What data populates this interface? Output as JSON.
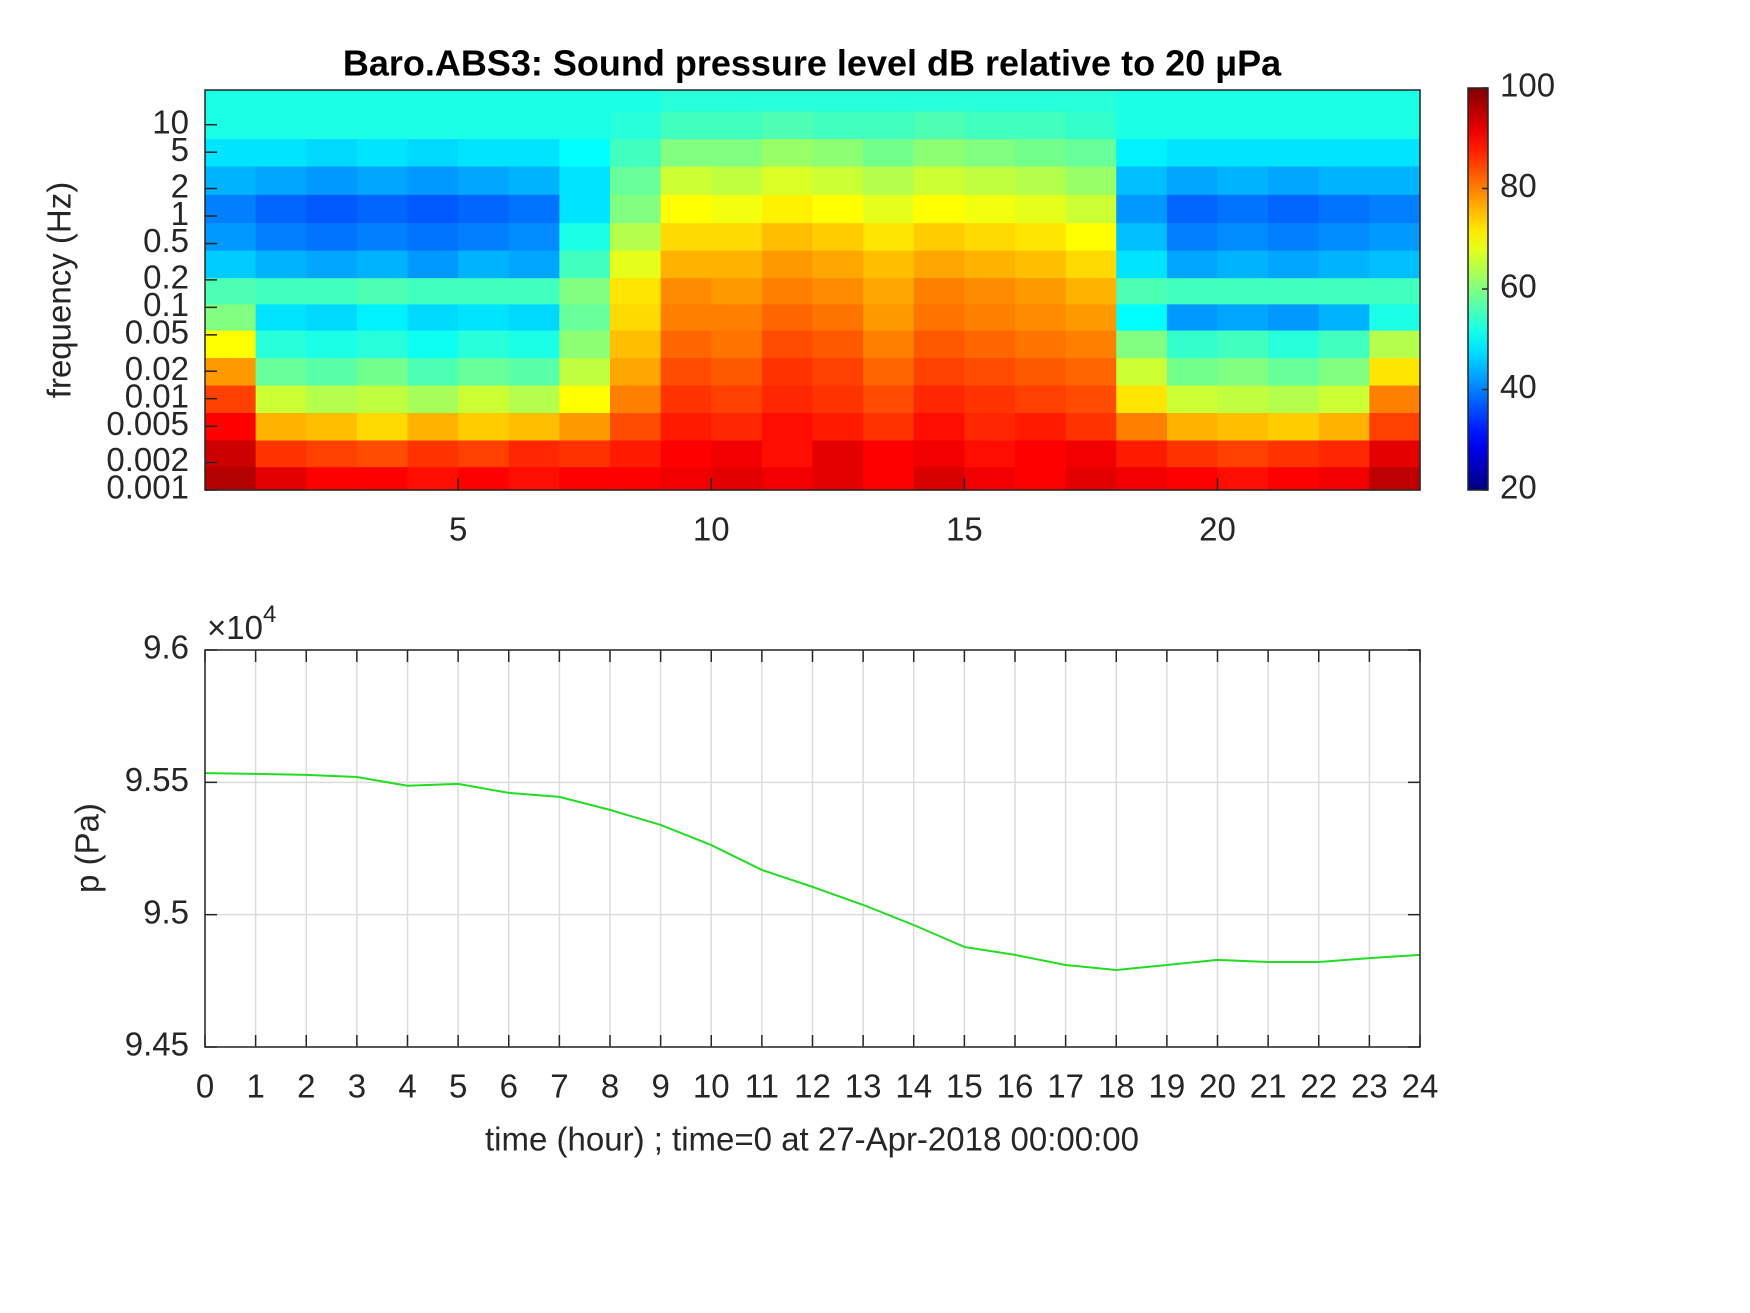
{
  "chart_data": [
    {
      "type": "heatmap",
      "title": "Baro.ABS3: Sound pressure level dB relative to 20 μPa",
      "ylabel": "frequency (Hz)",
      "x": [
        0.5,
        1.5,
        2.5,
        3.5,
        4.5,
        5.5,
        6.5,
        7.5,
        8.5,
        9.5,
        10.5,
        11.5,
        12.5,
        13.5,
        14.5,
        15.5,
        16.5,
        17.5,
        18.5,
        19.5,
        20.5,
        21.5,
        22.5,
        23.5
      ],
      "y": [
        0.0013,
        0.0025,
        0.005,
        0.01,
        0.02,
        0.04,
        0.08,
        0.15,
        0.3,
        0.6,
        1.2,
        2.5,
        5,
        10,
        20
      ],
      "z": [
        [
          96,
          92,
          90,
          90,
          89,
          90,
          89,
          90,
          90,
          91,
          92,
          91,
          92,
          90,
          93,
          91,
          90,
          92,
          91,
          90,
          89,
          90,
          91,
          95
        ],
        [
          94,
          86,
          85,
          84,
          86,
          85,
          87,
          86,
          88,
          90,
          91,
          89,
          92,
          90,
          91,
          89,
          90,
          91,
          88,
          86,
          85,
          86,
          87,
          92
        ],
        [
          90,
          76,
          75,
          73,
          76,
          74,
          75,
          78,
          84,
          88,
          87,
          89,
          88,
          86,
          89,
          87,
          88,
          86,
          80,
          76,
          75,
          74,
          76,
          85
        ],
        [
          85,
          66,
          64,
          65,
          63,
          66,
          64,
          70,
          80,
          86,
          85,
          87,
          86,
          84,
          87,
          86,
          85,
          84,
          72,
          66,
          65,
          64,
          66,
          80
        ],
        [
          78,
          58,
          57,
          59,
          56,
          58,
          57,
          65,
          77,
          84,
          83,
          86,
          85,
          82,
          85,
          84,
          83,
          82,
          66,
          59,
          60,
          58,
          60,
          72
        ],
        [
          70,
          53,
          52,
          53,
          51,
          53,
          52,
          61,
          75,
          82,
          81,
          84,
          83,
          80,
          83,
          82,
          81,
          80,
          60,
          54,
          55,
          53,
          55,
          64
        ],
        [
          60,
          48,
          47,
          49,
          47,
          48,
          47,
          58,
          73,
          80,
          80,
          82,
          81,
          78,
          81,
          80,
          79,
          78,
          50,
          42,
          43,
          42,
          44,
          52
        ],
        [
          56,
          55,
          55,
          56,
          55,
          55,
          55,
          60,
          72,
          79,
          78,
          80,
          79,
          77,
          80,
          79,
          78,
          76,
          56,
          55,
          55,
          55,
          55,
          55
        ],
        [
          46,
          44,
          43,
          44,
          42,
          44,
          43,
          55,
          68,
          76,
          76,
          78,
          77,
          75,
          77,
          76,
          75,
          73,
          48,
          43,
          44,
          43,
          44,
          45
        ],
        [
          42,
          40,
          39,
          40,
          39,
          40,
          41,
          52,
          64,
          73,
          73,
          75,
          74,
          72,
          74,
          73,
          72,
          70,
          45,
          40,
          41,
          40,
          41,
          42
        ],
        [
          40,
          38,
          37,
          38,
          37,
          38,
          39,
          48,
          60,
          70,
          69,
          71,
          70,
          68,
          70,
          69,
          68,
          66,
          42,
          38,
          39,
          38,
          39,
          40
        ],
        [
          44,
          43,
          42,
          43,
          42,
          43,
          44,
          48,
          58,
          66,
          65,
          67,
          66,
          64,
          66,
          65,
          64,
          62,
          45,
          43,
          44,
          43,
          44,
          44
        ],
        [
          48,
          48,
          47,
          48,
          47,
          48,
          48,
          50,
          55,
          60,
          60,
          62,
          61,
          59,
          61,
          60,
          59,
          58,
          49,
          48,
          48,
          48,
          48,
          48
        ],
        [
          52,
          52,
          52,
          52,
          52,
          52,
          52,
          52,
          53,
          55,
          55,
          56,
          55,
          55,
          56,
          55,
          55,
          54,
          52,
          52,
          52,
          52,
          52,
          52
        ],
        [
          52,
          52,
          52,
          52,
          52,
          52,
          52,
          52,
          52,
          53,
          53,
          53,
          53,
          53,
          53,
          53,
          53,
          53,
          52,
          52,
          52,
          52,
          52,
          52
        ]
      ],
      "xlim": [
        0,
        24
      ],
      "xticks": [
        5,
        10,
        15,
        20
      ],
      "ylim": [
        0.001,
        24
      ],
      "y_log": true,
      "yticks": [
        0.001,
        0.002,
        0.005,
        0.01,
        0.02,
        0.05,
        0.1,
        0.2,
        0.5,
        1,
        2,
        5,
        10
      ],
      "colormap": "jet",
      "clim": [
        20,
        100
      ],
      "cticks": [
        20,
        40,
        60,
        80,
        100
      ]
    },
    {
      "type": "line",
      "xlabel": "time (hour) ; time=0 at 27-Apr-2018 00:00:00",
      "ylabel": "p (Pa)",
      "y_multiplier": {
        "base": "×10",
        "exponent": "4"
      },
      "x": [
        0,
        1,
        2,
        3,
        4,
        5,
        6,
        7,
        8,
        9,
        10,
        11,
        12,
        13,
        14,
        15,
        16,
        17,
        18,
        19,
        20,
        21,
        22,
        23,
        24
      ],
      "values": [
        95535,
        95532,
        95528,
        95520,
        95487,
        95494,
        95460,
        95445,
        95396,
        95339,
        95263,
        95169,
        95105,
        95037,
        94961,
        94878,
        94848,
        94810,
        94791,
        94810,
        94829,
        94821,
        94821,
        94836,
        94848
      ],
      "color": "#22dd22",
      "xlim": [
        0,
        24
      ],
      "xticks": [
        0,
        1,
        2,
        3,
        4,
        5,
        6,
        7,
        8,
        9,
        10,
        11,
        12,
        13,
        14,
        15,
        16,
        17,
        18,
        19,
        20,
        21,
        22,
        23,
        24
      ],
      "ylim": [
        94500,
        96000
      ],
      "yticks": [
        {
          "value": 94500,
          "label": "9.45"
        },
        {
          "value": 95000,
          "label": "9.5"
        },
        {
          "value": 95500,
          "label": "9.55"
        },
        {
          "value": 96000,
          "label": "9.6"
        }
      ],
      "grid": true
    }
  ]
}
